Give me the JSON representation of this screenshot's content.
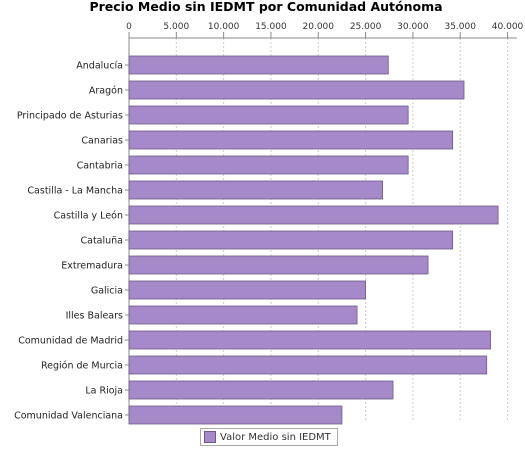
{
  "chart_data": {
    "type": "bar",
    "orientation": "horizontal",
    "title": "Precio Medio sin IEDMT por Comunidad Autónoma",
    "xlabel": "",
    "ylabel": "",
    "xlim": [
      0,
      41000
    ],
    "ticks": [
      0,
      5000,
      10000,
      15000,
      20000,
      25000,
      30000,
      35000,
      40000
    ],
    "tick_labels": [
      "0",
      "5.000",
      "10.000",
      "15.000",
      "20.000",
      "25.000",
      "30.000",
      "35.000",
      "40.000"
    ],
    "tick_position": "top",
    "grid": true,
    "legend_position": "bottom",
    "categories": [
      "Andalucía",
      "Aragón",
      "Principado de Asturias",
      "Canarias",
      "Cantabria",
      "Castilla - La Mancha",
      "Castilla y León",
      "Cataluña",
      "Extremadura",
      "Galicia",
      "Illes Balears",
      "Comunidad de Madrid",
      "Región de Murcia",
      "La Rioja",
      "Comunidad Valenciana"
    ],
    "series": [
      {
        "name": "Valor Medio sin IEDMT",
        "color": "#a589c9",
        "values": [
          27400,
          35400,
          29500,
          34200,
          29500,
          26800,
          39000,
          34200,
          31600,
          25000,
          24100,
          38200,
          37800,
          27900,
          22500
        ]
      }
    ]
  }
}
